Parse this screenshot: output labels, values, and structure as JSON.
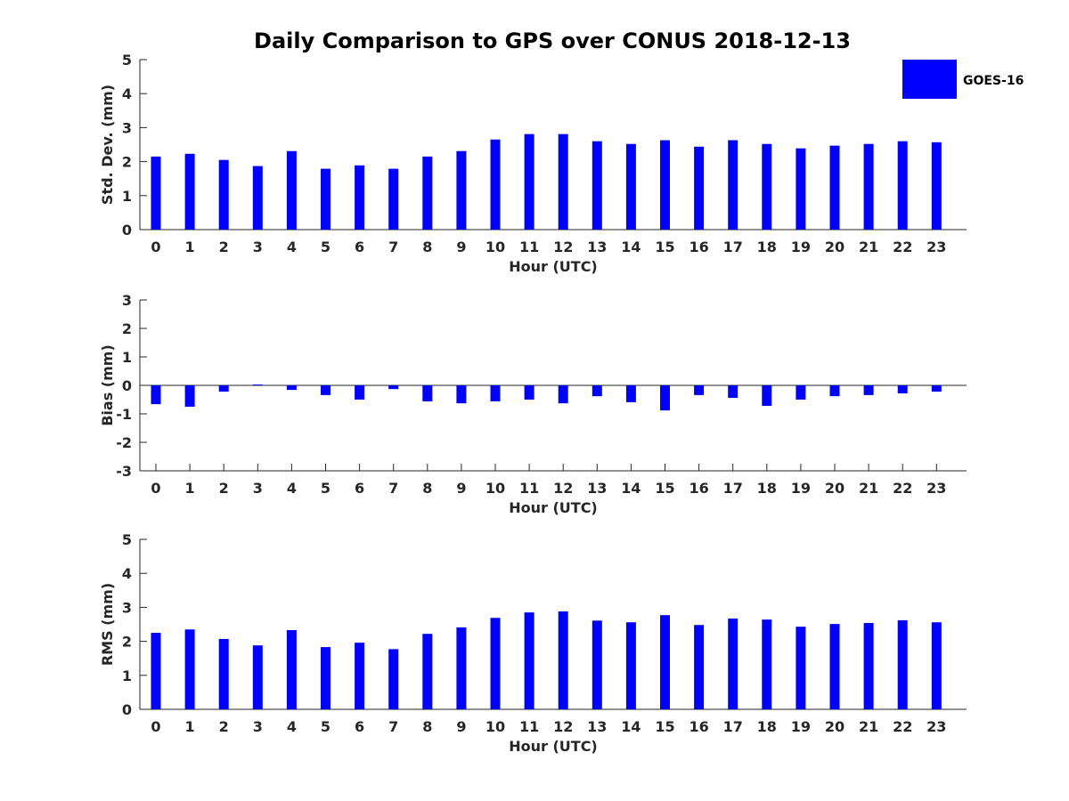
{
  "chart_data": {
    "type": "bar",
    "title": "Daily Comparison to GPS over CONUS 2018-12-13",
    "bar_color": "#0000ff",
    "legend": {
      "label": "GOES-16",
      "placement": "top-right"
    },
    "categories": [
      "0",
      "1",
      "2",
      "3",
      "4",
      "5",
      "6",
      "7",
      "8",
      "9",
      "10",
      "11",
      "12",
      "13",
      "14",
      "15",
      "16",
      "17",
      "18",
      "19",
      "20",
      "21",
      "22",
      "23"
    ],
    "panels": [
      {
        "ylabel": "Std. Dev. (mm)",
        "xlabel": "Hour (UTC)",
        "ylim": [
          0,
          5
        ],
        "yticks": [
          "0",
          "1",
          "2",
          "3",
          "4",
          "5"
        ],
        "values": [
          2.15,
          2.23,
          2.05,
          1.87,
          2.31,
          1.79,
          1.89,
          1.79,
          2.15,
          2.31,
          2.65,
          2.81,
          2.81,
          2.6,
          2.52,
          2.63,
          2.44,
          2.63,
          2.52,
          2.39,
          2.47,
          2.52,
          2.6,
          2.57
        ]
      },
      {
        "ylabel": "Bias (mm)",
        "xlabel": "Hour (UTC)",
        "ylim": [
          -3,
          3
        ],
        "yticks": [
          "-3",
          "-2",
          "-1",
          "0",
          "1",
          "2",
          "3"
        ],
        "values": [
          -0.66,
          -0.75,
          -0.22,
          0.03,
          -0.16,
          -0.34,
          -0.5,
          -0.13,
          -0.56,
          -0.63,
          -0.56,
          -0.5,
          -0.63,
          -0.38,
          -0.59,
          -0.88,
          -0.34,
          -0.44,
          -0.72,
          -0.5,
          -0.38,
          -0.34,
          -0.28,
          -0.22
        ]
      },
      {
        "ylabel": "RMS (mm)",
        "xlabel": "Hour (UTC)",
        "ylim": [
          0,
          5
        ],
        "yticks": [
          "0",
          "1",
          "2",
          "3",
          "4",
          "5"
        ],
        "values": [
          2.25,
          2.35,
          2.07,
          1.88,
          2.33,
          1.83,
          1.96,
          1.77,
          2.22,
          2.41,
          2.69,
          2.85,
          2.88,
          2.61,
          2.56,
          2.77,
          2.48,
          2.67,
          2.64,
          2.43,
          2.51,
          2.54,
          2.62,
          2.56
        ]
      }
    ]
  }
}
